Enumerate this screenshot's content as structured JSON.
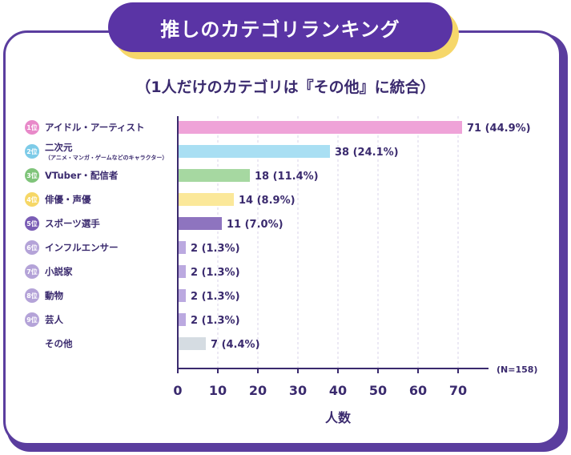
{
  "header": {
    "title": "推しのカテゴリランキング",
    "subtitle": "（1人だけのカテゴリは『その他』に統合）"
  },
  "colors": {
    "text": "#3a2a6e",
    "grid": "#d9d3ea"
  },
  "chart_data": {
    "type": "bar",
    "orientation": "horizontal",
    "title": "推しのカテゴリランキング",
    "subtitle": "（1人だけのカテゴリは『その他』に統合）",
    "xlabel": "人数",
    "ylabel": "",
    "xlim": [
      0,
      75
    ],
    "ticks": [
      0,
      10,
      20,
      30,
      40,
      50,
      60,
      70
    ],
    "grid": true,
    "note": "(N=158)",
    "categories": [
      {
        "rank": "1位",
        "label": "アイドル・アーティスト",
        "sub": "",
        "value": 71,
        "value_label": "71 (44.9%)",
        "color": "#efa3d8",
        "badge_color": "#e889c9"
      },
      {
        "rank": "2位",
        "label": "二次元",
        "sub": "（アニメ・マンガ・ゲームなどのキャラクター）",
        "value": 38,
        "value_label": "38 (24.1%)",
        "color": "#a9dff3",
        "badge_color": "#7dcbe8"
      },
      {
        "rank": "3位",
        "label": "VTuber・配信者",
        "sub": "",
        "value": 18,
        "value_label": "18 (11.4%)",
        "color": "#a6d8a1",
        "badge_color": "#7fc47a"
      },
      {
        "rank": "4位",
        "label": "俳優・声優",
        "sub": "",
        "value": 14,
        "value_label": "14 (8.9%)",
        "color": "#fbe89a",
        "badge_color": "#f6d766"
      },
      {
        "rank": "5位",
        "label": "スポーツ選手",
        "sub": "",
        "value": 11,
        "value_label": "11 (7.0%)",
        "color": "#8e74bf",
        "badge_color": "#7a5db5"
      },
      {
        "rank": "6位",
        "label": "インフルエンサー",
        "sub": "",
        "value": 2,
        "value_label": "2 (1.3%)",
        "color": "#bba9e0",
        "badge_color": "#b4a3d8"
      },
      {
        "rank": "7位",
        "label": "小説家",
        "sub": "",
        "value": 2,
        "value_label": "2 (1.3%)",
        "color": "#bba9e0",
        "badge_color": "#b4a3d8"
      },
      {
        "rank": "8位",
        "label": "動物",
        "sub": "",
        "value": 2,
        "value_label": "2 (1.3%)",
        "color": "#bba9e0",
        "badge_color": "#b4a3d8"
      },
      {
        "rank": "9位",
        "label": "芸人",
        "sub": "",
        "value": 2,
        "value_label": "2 (1.3%)",
        "color": "#bba9e0",
        "badge_color": "#b4a3d8"
      },
      {
        "rank": "",
        "label": "その他",
        "sub": "",
        "value": 7,
        "value_label": "7 (4.4%)",
        "color": "#d5dce2",
        "badge_color": ""
      }
    ]
  }
}
